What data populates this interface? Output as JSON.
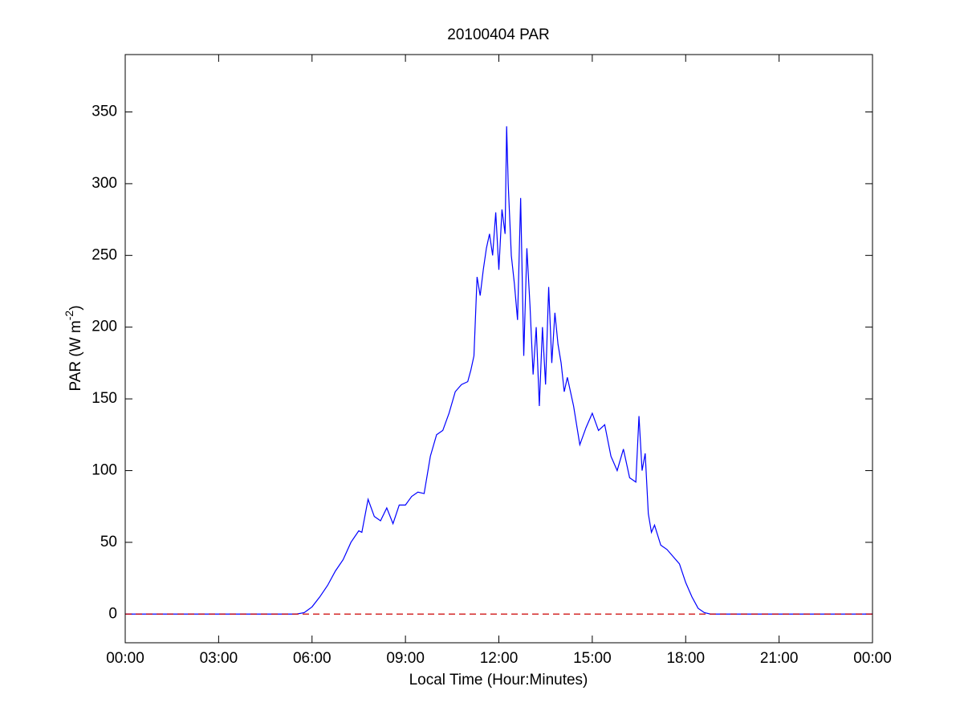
{
  "chart_data": {
    "type": "line",
    "title": "20100404 PAR",
    "xlabel": "Local Time (Hour:Minutes)",
    "ylabel": {
      "text": "PAR (W m",
      "superscript": "-2",
      "suffix": ")"
    },
    "xlim": [
      0,
      24
    ],
    "ylim": [
      -20,
      390
    ],
    "xticks": [
      {
        "value": 0,
        "label": "00:00"
      },
      {
        "value": 3,
        "label": "03:00"
      },
      {
        "value": 6,
        "label": "06:00"
      },
      {
        "value": 9,
        "label": "09:00"
      },
      {
        "value": 12,
        "label": "12:00"
      },
      {
        "value": 15,
        "label": "15:00"
      },
      {
        "value": 18,
        "label": "18:00"
      },
      {
        "value": 21,
        "label": "21:00"
      },
      {
        "value": 24,
        "label": "00:00"
      }
    ],
    "yticks": [
      0,
      50,
      100,
      150,
      200,
      250,
      300,
      350
    ],
    "grid": false,
    "reference_line": {
      "value": 0,
      "color": "#cc0000",
      "dashed": true
    },
    "series": [
      {
        "color": "#0000ff",
        "x": [
          0,
          3,
          5.5,
          5.75,
          6.0,
          6.25,
          6.5,
          6.75,
          7.0,
          7.25,
          7.5,
          7.6,
          7.8,
          8.0,
          8.2,
          8.4,
          8.6,
          8.8,
          9.0,
          9.2,
          9.4,
          9.6,
          9.8,
          10.0,
          10.2,
          10.4,
          10.6,
          10.8,
          11.0,
          11.1,
          11.2,
          11.3,
          11.4,
          11.5,
          11.6,
          11.7,
          11.8,
          11.9,
          12.0,
          12.1,
          12.2,
          12.25,
          12.3,
          12.4,
          12.5,
          12.6,
          12.7,
          12.8,
          12.9,
          13.0,
          13.1,
          13.2,
          13.3,
          13.4,
          13.5,
          13.6,
          13.7,
          13.8,
          13.9,
          14.0,
          14.1,
          14.2,
          14.4,
          14.6,
          14.8,
          15.0,
          15.2,
          15.4,
          15.6,
          15.8,
          16.0,
          16.2,
          16.4,
          16.5,
          16.6,
          16.7,
          16.8,
          16.9,
          17.0,
          17.2,
          17.4,
          17.6,
          17.8,
          18.0,
          18.2,
          18.4,
          18.6,
          18.8,
          24
        ],
        "values": [
          0,
          0,
          0,
          1,
          5,
          12,
          20,
          30,
          38,
          50,
          58,
          57,
          80,
          68,
          65,
          74,
          63,
          76,
          76,
          82,
          85,
          84,
          110,
          125,
          128,
          140,
          155,
          160,
          162,
          170,
          180,
          235,
          222,
          240,
          255,
          265,
          250,
          280,
          240,
          282,
          265,
          340,
          300,
          250,
          230,
          205,
          290,
          180,
          255,
          215,
          167,
          200,
          145,
          200,
          160,
          228,
          175,
          210,
          188,
          175,
          155,
          165,
          145,
          118,
          130,
          140,
          128,
          132,
          110,
          100,
          115,
          95,
          92,
          138,
          100,
          112,
          70,
          57,
          62,
          48,
          45,
          40,
          35,
          22,
          12,
          4,
          1,
          0,
          0
        ]
      }
    ]
  }
}
